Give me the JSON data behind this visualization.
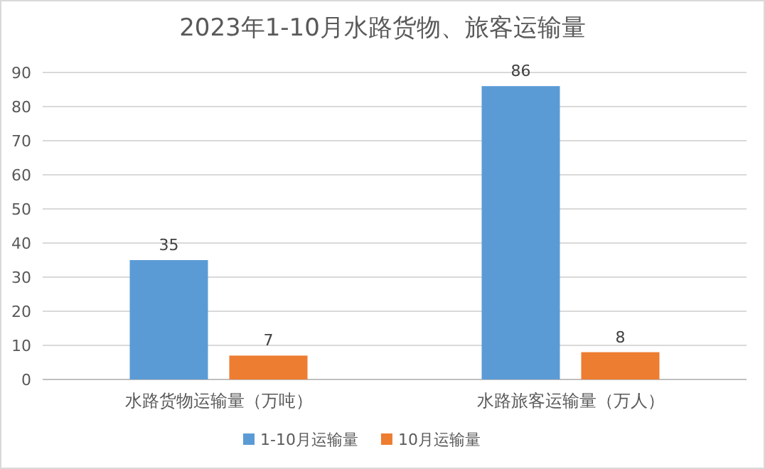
{
  "chart_data": {
    "type": "bar",
    "title": "2023年1-10月水路货物、旅客运输量",
    "categories": [
      "水路货物运输量（万吨）",
      "水路旅客运输量（万人）"
    ],
    "series": [
      {
        "name": "1-10月运输量",
        "color": "#5b9bd5",
        "values": [
          35,
          86
        ]
      },
      {
        "name": "10月运输量",
        "color": "#ed7d31",
        "values": [
          7,
          8
        ]
      }
    ],
    "ylim": [
      0,
      90
    ],
    "yticks": [
      0,
      10,
      20,
      30,
      40,
      50,
      60,
      70,
      80,
      90
    ],
    "grid": "y",
    "legend": "bottom",
    "data_labels": true
  }
}
